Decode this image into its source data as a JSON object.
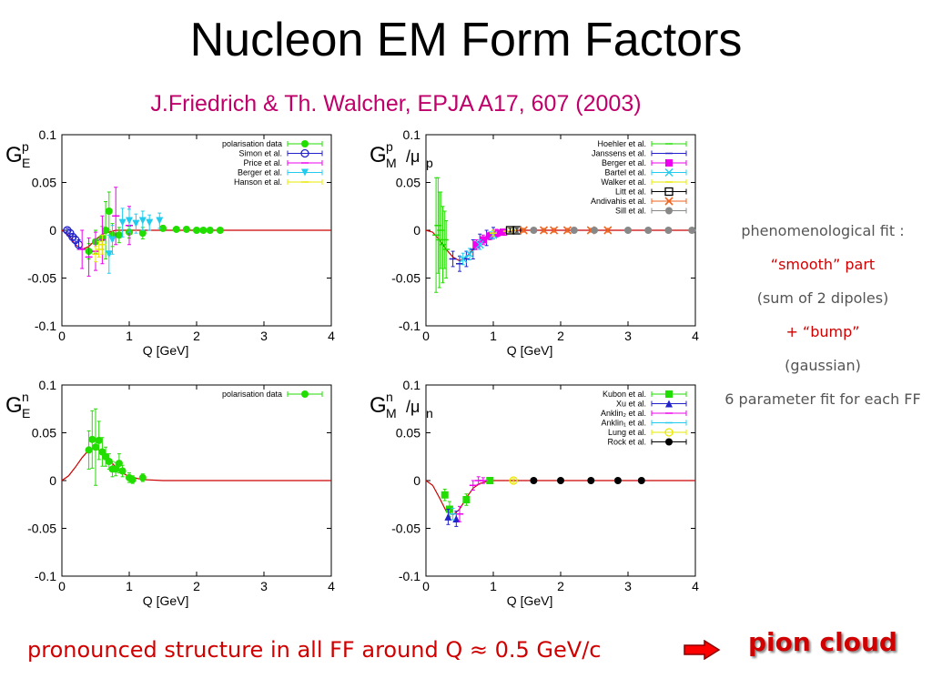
{
  "title": "Nucleon EM Form Factors",
  "subtitle": "J.Friedrich & Th. Walcher, EPJA A17, 607 (2003)",
  "side_notes": {
    "line1": "phenomenological fit :",
    "line2": "“smooth” part",
    "line3": "(sum of 2 dipoles)",
    "line4": "+ “bump”",
    "line5": "(gaussian)",
    "line6": "6 parameter fit for each FF"
  },
  "bottom_text": "pronounced structure in all FF around Q ≈ 0.5 GeV/c",
  "pion_text": "pion cloud",
  "colors": {
    "title_accent": "#c0006a",
    "highlight": "#d00000",
    "fit_line": "#cc0000"
  },
  "chart_data": [
    {
      "type": "scatter",
      "ylabel_main": "G",
      "ylabel_sub": "E",
      "ylabel_sup": "p",
      "ylabel_extra": "",
      "xlabel": "Q  [GeV]",
      "xlim": [
        0,
        4
      ],
      "ylim": [
        -0.1,
        0.1
      ],
      "xticks": [
        "0",
        "1",
        "2",
        "3",
        "4"
      ],
      "yticks": [
        "0.1",
        "0.05",
        "0",
        "-0.05",
        "-0.1"
      ],
      "legend_position": "top-right",
      "series": [
        {
          "name": "polarisation data",
          "color": "#22dd00",
          "marker": "circle",
          "points": [
            [
              0.4,
              -0.022,
              0.008
            ],
            [
              0.5,
              -0.012,
              0.012
            ],
            [
              0.6,
              -0.008,
              0.012
            ],
            [
              0.65,
              0.0,
              0.03
            ],
            [
              0.7,
              0.02,
              0.02
            ],
            [
              0.75,
              -0.005,
              0.012
            ],
            [
              0.85,
              -0.005,
              0.008
            ],
            [
              1.0,
              -0.002,
              0.006
            ],
            [
              1.2,
              -0.003,
              0.006
            ],
            [
              1.5,
              0.002,
              0.003
            ],
            [
              1.7,
              0.001,
              0.002
            ],
            [
              1.85,
              0.001,
              0.002
            ],
            [
              2.0,
              0.0,
              0.002
            ],
            [
              2.1,
              0.0,
              0.002
            ],
            [
              2.2,
              0.0,
              0.002
            ],
            [
              2.35,
              0.0,
              0.002
            ]
          ]
        },
        {
          "name": "Simon et al.",
          "color": "#2222cc",
          "marker": "circle-open",
          "points": [
            [
              0.08,
              0.0,
              0.002
            ],
            [
              0.12,
              -0.003,
              0.003
            ],
            [
              0.16,
              -0.007,
              0.003
            ],
            [
              0.2,
              -0.01,
              0.004
            ],
            [
              0.25,
              -0.015,
              0.005
            ]
          ]
        },
        {
          "name": "Price et al.",
          "color": "#ee00ee",
          "marker": "dash",
          "points": [
            [
              0.3,
              -0.02,
              0.02
            ],
            [
              0.4,
              -0.028,
              0.02
            ],
            [
              0.5,
              -0.022,
              0.02
            ],
            [
              0.6,
              -0.01,
              0.025
            ],
            [
              0.8,
              0.015,
              0.03
            ],
            [
              1.0,
              0.005,
              0.02
            ]
          ]
        },
        {
          "name": "Berger et al.",
          "color": "#22ccee",
          "marker": "triangle-down",
          "points": [
            [
              0.7,
              -0.025,
              0.02
            ],
            [
              0.75,
              -0.01,
              0.015
            ],
            [
              0.9,
              0.008,
              0.015
            ],
            [
              1.0,
              0.01,
              0.012
            ],
            [
              1.1,
              0.007,
              0.01
            ],
            [
              1.2,
              0.01,
              0.01
            ],
            [
              1.3,
              0.008,
              0.008
            ],
            [
              1.45,
              0.01,
              0.008
            ]
          ]
        },
        {
          "name": "Hanson et al.",
          "color": "#e8e800",
          "marker": "dash",
          "points": [
            [
              0.5,
              -0.025,
              0.008
            ],
            [
              0.55,
              -0.02,
              0.008
            ],
            [
              0.6,
              -0.015,
              0.01
            ]
          ]
        }
      ],
      "fit": {
        "color": "#cc0000",
        "points": [
          [
            0,
            0.0
          ],
          [
            0.1,
            -0.005
          ],
          [
            0.2,
            -0.015
          ],
          [
            0.3,
            -0.02
          ],
          [
            0.4,
            -0.017
          ],
          [
            0.5,
            -0.01
          ],
          [
            0.6,
            -0.004
          ],
          [
            0.8,
            0.0
          ],
          [
            1.0,
            0.0
          ],
          [
            4.0,
            0.0
          ]
        ]
      }
    },
    {
      "type": "scatter",
      "ylabel_main": "G",
      "ylabel_sub": "M",
      "ylabel_sup": "p",
      "ylabel_extra": "/μ",
      "ylabel_extra_sub": "p",
      "xlabel": "Q  [GeV]",
      "xlim": [
        0,
        4
      ],
      "ylim": [
        -0.1,
        0.1
      ],
      "xticks": [
        "0",
        "1",
        "2",
        "3",
        "4"
      ],
      "yticks": [
        "0.1",
        "0.05",
        "0",
        "-0.05",
        "-0.1"
      ],
      "legend_position": "top-right",
      "series": [
        {
          "name": "Hoehler   et al.",
          "color": "#22dd00",
          "marker": "dash",
          "points": [
            [
              0.15,
              -0.005,
              0.06
            ],
            [
              0.18,
              0.005,
              0.05
            ],
            [
              0.2,
              -0.01,
              0.05
            ],
            [
              0.22,
              0.0,
              0.04
            ],
            [
              0.25,
              -0.015,
              0.04
            ],
            [
              0.28,
              -0.01,
              0.03
            ],
            [
              0.3,
              -0.02,
              0.03
            ]
          ]
        },
        {
          "name": "Janssens   et al.",
          "color": "#2222cc",
          "marker": "dash",
          "points": [
            [
              0.4,
              -0.03,
              0.008
            ],
            [
              0.5,
              -0.035,
              0.008
            ],
            [
              0.6,
              -0.03,
              0.008
            ],
            [
              0.7,
              -0.02,
              0.01
            ],
            [
              0.8,
              -0.012,
              0.008
            ],
            [
              0.9,
              -0.008,
              0.008
            ],
            [
              1.0,
              -0.003,
              0.006
            ]
          ]
        },
        {
          "name": "Berger   et al.",
          "color": "#ee00ee",
          "marker": "square",
          "points": [
            [
              0.75,
              -0.015,
              0.005
            ],
            [
              0.85,
              -0.01,
              0.005
            ],
            [
              0.95,
              -0.006,
              0.004
            ],
            [
              1.05,
              -0.003,
              0.004
            ],
            [
              1.15,
              -0.002,
              0.003
            ]
          ]
        },
        {
          "name": "Bartel   et al.",
          "color": "#22ccee",
          "marker": "cross",
          "points": [
            [
              0.55,
              -0.03,
              0.006
            ],
            [
              0.65,
              -0.025,
              0.006
            ],
            [
              0.8,
              -0.015,
              0.005
            ],
            [
              1.0,
              -0.005,
              0.004
            ]
          ]
        },
        {
          "name": "Walker   et al.",
          "color": "#e8e800",
          "marker": "dash",
          "points": [
            [
              1.0,
              -0.003,
              0.003
            ],
            [
              1.2,
              -0.001,
              0.003
            ],
            [
              1.3,
              0.0,
              0.003
            ]
          ]
        },
        {
          "name": "Litt   et al.",
          "color": "#000000",
          "marker": "square-open",
          "points": [
            [
              1.25,
              0.0,
              0.002
            ],
            [
              1.35,
              0.0,
              0.002
            ]
          ]
        },
        {
          "name": "Andivahis et al.",
          "color": "#ee6622",
          "marker": "x",
          "points": [
            [
              1.45,
              0.0,
              0.002
            ],
            [
              1.75,
              0.0,
              0.002
            ],
            [
              1.9,
              0.0,
              0.002
            ],
            [
              2.1,
              0.0,
              0.002
            ],
            [
              2.45,
              0.0,
              0.002
            ],
            [
              2.7,
              0.0,
              0.002
            ]
          ]
        },
        {
          "name": "Sill   et al.",
          "color": "#888888",
          "marker": "circle",
          "points": [
            [
              1.6,
              0.0,
              0.001
            ],
            [
              2.2,
              0.0,
              0.001
            ],
            [
              2.5,
              0.0,
              0.001
            ],
            [
              3.0,
              0.0,
              0.001
            ],
            [
              3.3,
              0.0,
              0.001
            ],
            [
              3.6,
              0.0,
              0.001
            ],
            [
              3.95,
              0.0,
              0.001
            ]
          ]
        }
      ],
      "fit": {
        "color": "#cc0000",
        "points": [
          [
            0,
            0.0
          ],
          [
            0.1,
            -0.002
          ],
          [
            0.2,
            -0.01
          ],
          [
            0.3,
            -0.02
          ],
          [
            0.4,
            -0.028
          ],
          [
            0.5,
            -0.032
          ],
          [
            0.6,
            -0.028
          ],
          [
            0.7,
            -0.02
          ],
          [
            0.8,
            -0.012
          ],
          [
            0.9,
            -0.006
          ],
          [
            1.0,
            -0.003
          ],
          [
            1.2,
            -0.001
          ],
          [
            1.4,
            0.0
          ],
          [
            4.0,
            0.0
          ]
        ]
      }
    },
    {
      "type": "scatter",
      "ylabel_main": "G",
      "ylabel_sub": "E",
      "ylabel_sup": "n",
      "ylabel_extra": "",
      "xlabel": "Q  [GeV]",
      "xlim": [
        0,
        4
      ],
      "ylim": [
        -0.1,
        0.1
      ],
      "xticks": [
        "0",
        "1",
        "2",
        "3",
        "4"
      ],
      "yticks": [
        "0.1",
        "0.05",
        "0",
        "-0.05",
        "-0.1"
      ],
      "legend_position": "top-right",
      "series": [
        {
          "name": "polarisation data",
          "color": "#22dd00",
          "marker": "circle",
          "points": [
            [
              0.4,
              0.032,
              0.02
            ],
            [
              0.45,
              0.043,
              0.03
            ],
            [
              0.5,
              0.035,
              0.04
            ],
            [
              0.55,
              0.042,
              0.02
            ],
            [
              0.6,
              0.03,
              0.015
            ],
            [
              0.65,
              0.025,
              0.01
            ],
            [
              0.7,
              0.02,
              0.008
            ],
            [
              0.75,
              0.012,
              0.008
            ],
            [
              0.8,
              0.012,
              0.007
            ],
            [
              0.85,
              0.018,
              0.01
            ],
            [
              0.9,
              0.01,
              0.006
            ],
            [
              1.0,
              0.003,
              0.005
            ],
            [
              1.05,
              0.001,
              0.004
            ],
            [
              1.2,
              0.003,
              0.004
            ]
          ]
        }
      ],
      "fit": {
        "color": "#cc0000",
        "points": [
          [
            0,
            0.0
          ],
          [
            0.1,
            0.005
          ],
          [
            0.2,
            0.014
          ],
          [
            0.3,
            0.024
          ],
          [
            0.4,
            0.032
          ],
          [
            0.5,
            0.034
          ],
          [
            0.6,
            0.03
          ],
          [
            0.7,
            0.022
          ],
          [
            0.8,
            0.014
          ],
          [
            0.9,
            0.008
          ],
          [
            1.0,
            0.004
          ],
          [
            1.2,
            0.001
          ],
          [
            1.5,
            0.0
          ],
          [
            4.0,
            0.0
          ]
        ]
      }
    },
    {
      "type": "scatter",
      "ylabel_main": "G",
      "ylabel_sub": "M",
      "ylabel_sup": "n",
      "ylabel_extra": "/μ",
      "ylabel_extra_sub": "n",
      "xlabel": "Q  [GeV]",
      "xlim": [
        0,
        4
      ],
      "ylim": [
        -0.1,
        0.1
      ],
      "xticks": [
        "0",
        "1",
        "2",
        "3",
        "4"
      ],
      "yticks": [
        "0.1",
        "0.05",
        "0",
        "-0.05",
        "-0.1"
      ],
      "legend_position": "top-right",
      "series": [
        {
          "name": "Kubon et al.",
          "color": "#22dd00",
          "marker": "square",
          "points": [
            [
              0.28,
              -0.015,
              0.006
            ],
            [
              0.35,
              -0.03,
              0.008
            ],
            [
              0.6,
              -0.02,
              0.006
            ],
            [
              0.95,
              0.0,
              0.002
            ]
          ]
        },
        {
          "name": "Xu et al.",
          "color": "#2222cc",
          "marker": "triangle",
          "points": [
            [
              0.33,
              -0.038,
              0.008
            ],
            [
              0.45,
              -0.04,
              0.008
            ]
          ]
        },
        {
          "name": "Anklin₂ et al.",
          "color": "#ee00ee",
          "marker": "dash",
          "points": [
            [
              0.5,
              -0.035,
              0.008
            ],
            [
              0.7,
              -0.005,
              0.005
            ],
            [
              0.78,
              0.0,
              0.004
            ],
            [
              0.85,
              0.0,
              0.003
            ]
          ]
        },
        {
          "name": "Anklin₁ et al.",
          "color": "#22ccee",
          "marker": "dash",
          "points": [
            [
              0.4,
              -0.035,
              0.006
            ]
          ]
        },
        {
          "name": "Lung et al.",
          "color": "#e8e800",
          "marker": "circle-open",
          "points": [
            [
              1.3,
              0.0,
              0.002
            ]
          ]
        },
        {
          "name": "Rock et al.",
          "color": "#000000",
          "marker": "circle",
          "points": [
            [
              1.6,
              0.0,
              0.001
            ],
            [
              2.0,
              0.0,
              0.001
            ],
            [
              2.45,
              0.0,
              0.001
            ],
            [
              2.85,
              0.0,
              0.001
            ],
            [
              3.2,
              0.0,
              0.001
            ]
          ]
        }
      ],
      "fit": {
        "color": "#cc0000",
        "points": [
          [
            0,
            0.0
          ],
          [
            0.1,
            -0.005
          ],
          [
            0.2,
            -0.018
          ],
          [
            0.3,
            -0.032
          ],
          [
            0.4,
            -0.036
          ],
          [
            0.5,
            -0.03
          ],
          [
            0.6,
            -0.018
          ],
          [
            0.7,
            -0.008
          ],
          [
            0.8,
            -0.003
          ],
          [
            0.9,
            -0.001
          ],
          [
            1.0,
            0.0
          ],
          [
            4.0,
            0.0
          ]
        ]
      }
    }
  ]
}
